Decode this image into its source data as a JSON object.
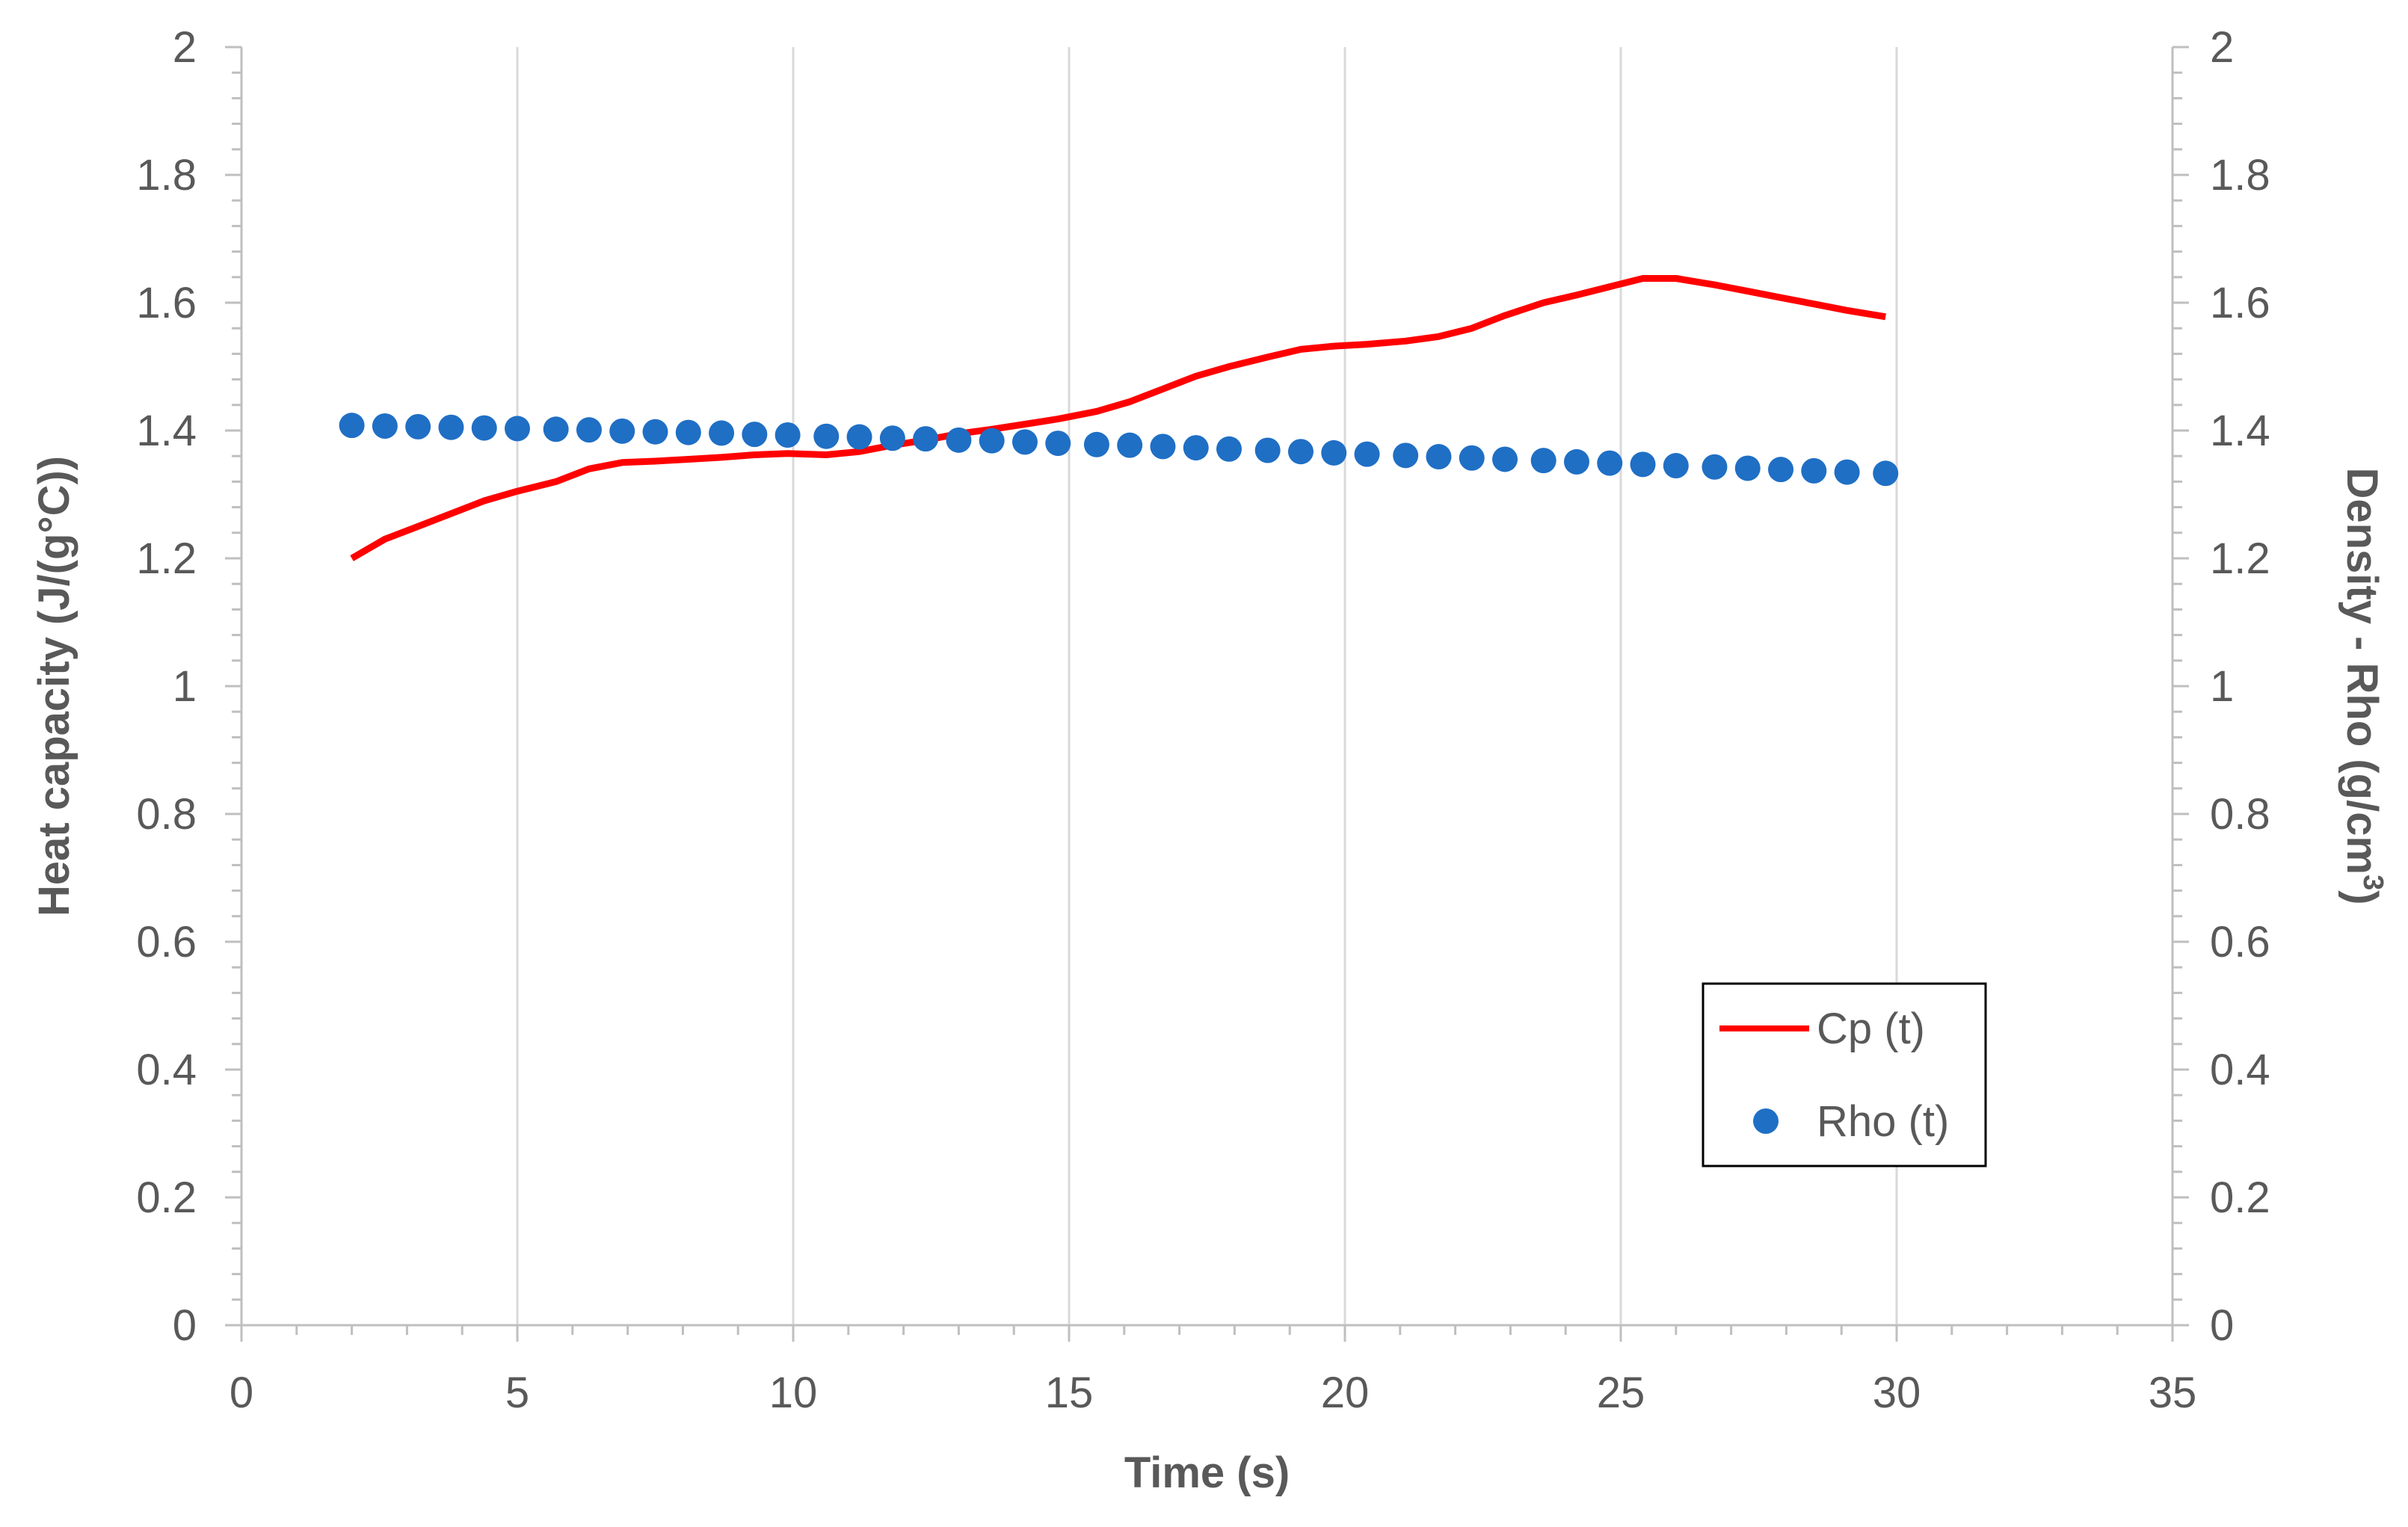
{
  "chart_data": {
    "type": "line",
    "title": "",
    "xlabel": "Time (s)",
    "ylabel_left": "Heat capacity (J/(g°C))",
    "ylabel_right_main": "Density - Rho (g/cm",
    "ylabel_right_sup": "3",
    "ylabel_right_close": ")",
    "xlim": [
      0,
      35
    ],
    "ylim_left": [
      0,
      2
    ],
    "ylim_right": [
      0,
      2
    ],
    "x_ticks": [
      0,
      5,
      10,
      15,
      20,
      25,
      30,
      35
    ],
    "y_ticks": [
      0,
      0.2,
      0.4,
      0.6,
      0.8,
      1,
      1.2,
      1.4,
      1.6,
      1.8,
      2
    ],
    "grid": "vertical",
    "legend_position": "lower-right",
    "colors": {
      "cp": "#ff0000",
      "rho": "#1f6fc5",
      "grid": "#d9d9d9",
      "axis": "#bfbfbf"
    },
    "series": [
      {
        "name": "Cp (t)",
        "style": "line",
        "axis": "left",
        "x": [
          2,
          2.6,
          3.2,
          3.8,
          4.4,
          5.0,
          5.7,
          6.3,
          6.9,
          7.5,
          8.1,
          8.7,
          9.3,
          9.9,
          10.6,
          11.2,
          11.8,
          12.4,
          13.0,
          13.6,
          14.2,
          14.8,
          15.5,
          16.1,
          16.7,
          17.3,
          17.9,
          18.6,
          19.2,
          19.8,
          20.4,
          21.1,
          21.7,
          22.3,
          22.9,
          23.6,
          24.2,
          24.8,
          25.4,
          26.0,
          26.7,
          27.3,
          27.9,
          28.5,
          29.1,
          29.8
        ],
        "values": [
          1.2,
          1.23,
          1.25,
          1.27,
          1.29,
          1.305,
          1.32,
          1.34,
          1.35,
          1.352,
          1.355,
          1.358,
          1.362,
          1.364,
          1.362,
          1.367,
          1.377,
          1.385,
          1.395,
          1.402,
          1.41,
          1.418,
          1.43,
          1.445,
          1.465,
          1.485,
          1.5,
          1.515,
          1.527,
          1.532,
          1.535,
          1.54,
          1.547,
          1.56,
          1.58,
          1.6,
          1.612,
          1.625,
          1.638,
          1.638,
          1.628,
          1.618,
          1.608,
          1.598,
          1.588,
          1.578
        ]
      },
      {
        "name": "Rho (t)",
        "style": "markers",
        "axis": "right",
        "x": [
          2,
          2.6,
          3.2,
          3.8,
          4.4,
          5.0,
          5.7,
          6.3,
          6.9,
          7.5,
          8.1,
          8.7,
          9.3,
          9.9,
          10.6,
          11.2,
          11.8,
          12.4,
          13.0,
          13.6,
          14.2,
          14.8,
          15.5,
          16.1,
          16.7,
          17.3,
          17.9,
          18.6,
          19.2,
          19.8,
          20.4,
          21.1,
          21.7,
          22.3,
          22.9,
          23.6,
          24.2,
          24.8,
          25.4,
          26.0,
          26.7,
          27.3,
          27.9,
          28.5,
          29.1,
          29.8
        ],
        "values": [
          1.408,
          1.407,
          1.406,
          1.405,
          1.404,
          1.403,
          1.402,
          1.401,
          1.399,
          1.398,
          1.397,
          1.396,
          1.394,
          1.393,
          1.391,
          1.39,
          1.388,
          1.387,
          1.385,
          1.384,
          1.382,
          1.38,
          1.378,
          1.377,
          1.375,
          1.373,
          1.371,
          1.369,
          1.367,
          1.365,
          1.363,
          1.361,
          1.359,
          1.357,
          1.355,
          1.353,
          1.351,
          1.349,
          1.347,
          1.345,
          1.343,
          1.341,
          1.339,
          1.337,
          1.335,
          1.333
        ]
      }
    ]
  }
}
